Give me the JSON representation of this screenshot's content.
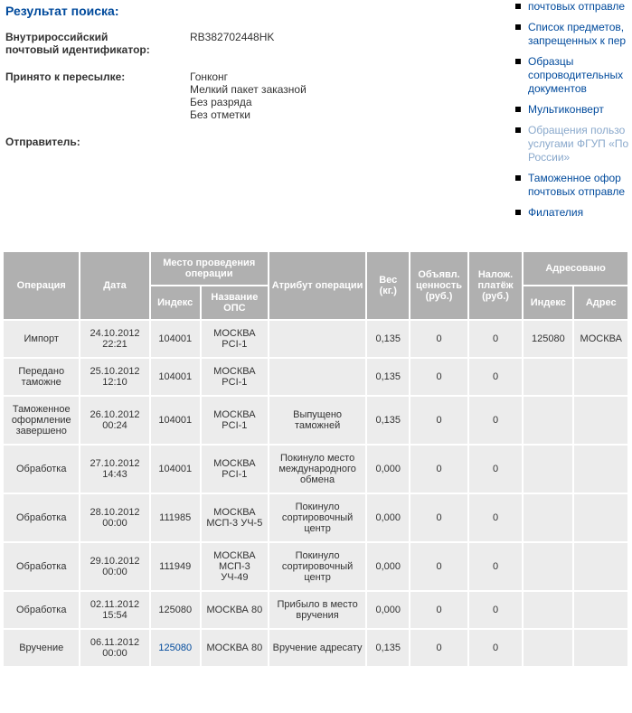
{
  "heading": "Результат поиска:",
  "info": {
    "id_label_1": "Внутрироссийский",
    "id_label_2": "почтовый идентификатор:",
    "id_value": "RB382702448HK",
    "accept_label": "Принято к пересылке:",
    "accept_v1": "Гонконг",
    "accept_v2": "Мелкий пакет заказной",
    "accept_v3": "Без разряда",
    "accept_v4": "Без отметки",
    "sender_label": "Отправитель:"
  },
  "side": [
    {
      "text": "почтовых отправле",
      "muted": false
    },
    {
      "text": "Список предметов, запрещенных к пер",
      "muted": false
    },
    {
      "text": "Образцы сопроводительных документов",
      "muted": false
    },
    {
      "text": "Мультиконверт",
      "muted": false
    },
    {
      "text": "Обращения пользо услугами ФГУП «По России»",
      "muted": true
    },
    {
      "text": "Таможенное офор почтовых отправле",
      "muted": false
    },
    {
      "text": "Филателия",
      "muted": false
    }
  ],
  "table": {
    "h_operation": "Операция",
    "h_date": "Дата",
    "h_place": "Место проведения операции",
    "h_index": "Индекс",
    "h_ops": "Название ОПС",
    "h_attr": "Атрибут операции",
    "h_weight": "Вес (кг.)",
    "h_decl": "Объявл. ценность (руб.)",
    "h_cod": "Налож. платёж (руб.)",
    "h_addr": "Адресовано",
    "h_addr_index": "Индекс",
    "h_addr_name": "Адрес",
    "rows": [
      {
        "op": "Импорт",
        "date": "24.10.2012 22:21",
        "idx": "104001",
        "ops": "МОСКВА PCI-1",
        "attr": "",
        "w": "0,135",
        "dv": "0",
        "cod": "0",
        "aidx": "125080",
        "addr": "МОСКВА"
      },
      {
        "op": "Передано таможне",
        "date": "25.10.2012 12:10",
        "idx": "104001",
        "ops": "МОСКВА PCI-1",
        "attr": "",
        "w": "0,135",
        "dv": "0",
        "cod": "0",
        "aidx": "",
        "addr": ""
      },
      {
        "op": "Таможенное оформление завершено",
        "date": "26.10.2012 00:24",
        "idx": "104001",
        "ops": "МОСКВА PCI-1",
        "attr": "Выпущено таможней",
        "w": "0,135",
        "dv": "0",
        "cod": "0",
        "aidx": "",
        "addr": ""
      },
      {
        "op": "Обработка",
        "date": "27.10.2012 14:43",
        "idx": "104001",
        "ops": "МОСКВА PCI-1",
        "attr": "Покинуло место международного обмена",
        "w": "0,000",
        "dv": "0",
        "cod": "0",
        "aidx": "",
        "addr": ""
      },
      {
        "op": "Обработка",
        "date": "28.10.2012 00:00",
        "idx": "111985",
        "ops": "МОСКВА МСП-3 УЧ-5",
        "attr": "Покинуло сортировочный центр",
        "w": "0,000",
        "dv": "0",
        "cod": "0",
        "aidx": "",
        "addr": ""
      },
      {
        "op": "Обработка",
        "date": "29.10.2012 00:00",
        "idx": "111949",
        "ops": "МОСКВА МСП-3 УЧ-49",
        "attr": "Покинуло сортировочный центр",
        "w": "0,000",
        "dv": "0",
        "cod": "0",
        "aidx": "",
        "addr": ""
      },
      {
        "op": "Обработка",
        "date": "02.11.2012 15:54",
        "idx": "125080",
        "ops": "МОСКВА 80",
        "attr": "Прибыло в место вручения",
        "w": "0,000",
        "dv": "0",
        "cod": "0",
        "aidx": "",
        "addr": ""
      },
      {
        "op": "Вручение",
        "date": "06.11.2012 00:00",
        "idx": "125080",
        "idx_link": true,
        "ops": "МОСКВА 80",
        "attr": "Вручение адресату",
        "w": "0,135",
        "dv": "0",
        "cod": "0",
        "aidx": "",
        "addr": ""
      }
    ]
  },
  "colors": {
    "heading": "#004a9c",
    "link": "#004a9c",
    "link_muted": "#8aa9cc",
    "th_bg": "#b0b0b0",
    "td_bg": "#ececec"
  }
}
